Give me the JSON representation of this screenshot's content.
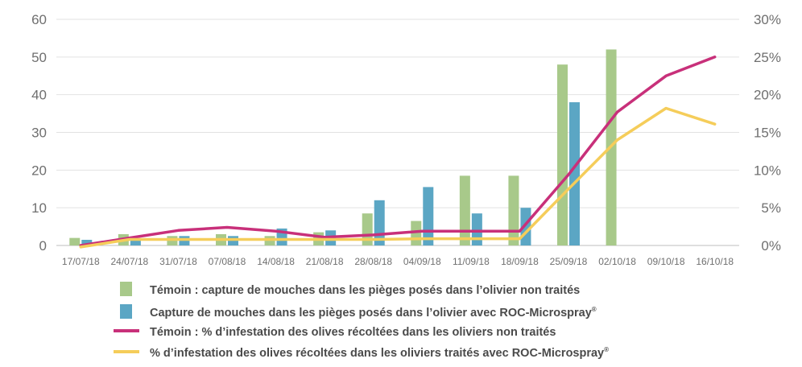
{
  "chart_data": {
    "type": "bar",
    "title": "",
    "xlabel": "",
    "ylabel_left": "",
    "ylabel_right": "",
    "categories": [
      "17/07/18",
      "24/07/18",
      "31/07/18",
      "07/08/18",
      "14/08/18",
      "21/08/18",
      "28/08/18",
      "04/09/18",
      "11/09/18",
      "18/09/18",
      "25/09/18",
      "02/10/18",
      "09/10/18",
      "16/10/18"
    ],
    "ylim_left": [
      0,
      60
    ],
    "yticks_left": [
      "0",
      "10",
      "20",
      "30",
      "40",
      "50",
      "60"
    ],
    "ylim_right": [
      0,
      30
    ],
    "yticks_right": [
      "0%",
      "5%",
      "10%",
      "15%",
      "20%",
      "25%",
      "30%"
    ],
    "grid": true,
    "legend_position": "bottom",
    "series": [
      {
        "name": "Témoin : capture de mouches dans les pièges posés dans l'olivier non traités",
        "kind": "bar",
        "axis": "left",
        "color": "#a8c98a",
        "values": [
          2,
          3,
          2.5,
          3,
          2.5,
          3.5,
          8.5,
          6.5,
          18.5,
          18.5,
          48,
          52,
          null,
          null
        ]
      },
      {
        "name": "Capture de mouches dans les pièges posés dans l'olivier avec ROC-Microspray",
        "kind": "bar",
        "axis": "left",
        "color": "#5ba6c4",
        "values": [
          1.5,
          1.5,
          2.5,
          2.5,
          4.5,
          4,
          12,
          15.5,
          8.5,
          10,
          38,
          null,
          null,
          null
        ]
      },
      {
        "name": "Témoin : % d'infestation des olives récoltées dans les oliviers non traités",
        "kind": "line",
        "axis": "right",
        "color": "#c8307a",
        "values": [
          0,
          1,
          2,
          2.4,
          1.9,
          1.1,
          1.4,
          1.9,
          1.9,
          1.9,
          9.4,
          17.7,
          22.5,
          25
        ]
      },
      {
        "name": "% d'infestation des olives récoltées dans les oliviers traités avec ROC-Microspray",
        "kind": "line",
        "axis": "right",
        "color": "#f5cd5a",
        "values": [
          -0.2,
          0.8,
          0.8,
          0.8,
          0.8,
          0.8,
          0.8,
          0.9,
          0.9,
          0.9,
          7.5,
          14,
          18.2,
          16.1
        ]
      }
    ]
  },
  "legend": [
    {
      "text": "Témoin : capture de mouches dans les pièges posés dans l’olivier non traités",
      "sup": ""
    },
    {
      "text": "Capture de mouches dans les pièges posés dans l’olivier avec ROC-Microspray",
      "sup": "®"
    },
    {
      "text": "Témoin : % d’infestation des olives récoltées dans les oliviers non traités",
      "sup": ""
    },
    {
      "text": "% d’infestation des olives récoltées dans les oliviers traités avec ROC-Microspray",
      "sup": "®"
    }
  ]
}
